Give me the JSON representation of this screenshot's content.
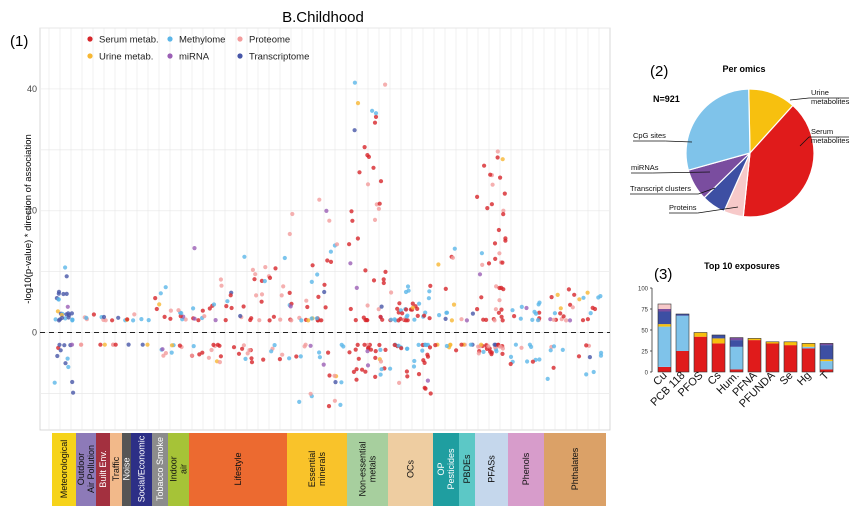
{
  "figure_title": "B.Childhood",
  "chart_data": [
    {
      "id": "manhattan",
      "type": "scatter",
      "panel_label": "(1)",
      "ylabel": "-log10(p-value) * direction of association",
      "ylim": [
        -16,
        50
      ],
      "yticks": [
        -20,
        0,
        20,
        40
      ],
      "legend_placement": "top-left",
      "legend": [
        {
          "name": "Serum metab.",
          "color": "#d7262a"
        },
        {
          "name": "Methylome",
          "color": "#5bb6e8"
        },
        {
          "name": "Proteome",
          "color": "#f39c9c"
        },
        {
          "name": "Urine metab.",
          "color": "#f7b733"
        },
        {
          "name": "miRNA",
          "color": "#9b5fb5"
        },
        {
          "name": "Transcriptome",
          "color": "#4756a8"
        }
      ],
      "groups": [
        {
          "label": "Meteorological",
          "color": "#f6d31a",
          "width": 24
        },
        {
          "label": "Outdoor Air Pollution",
          "color": "#8d7ab8",
          "width": 20
        },
        {
          "label": "Built Env.",
          "color": "#a3303f",
          "width": 14
        },
        {
          "label": "Traffic",
          "color": "#f2b98a",
          "width": 12
        },
        {
          "label": "Noise",
          "color": "#555555",
          "width": 9
        },
        {
          "label": "Social/Economic",
          "color": "#2d2f86",
          "width": 21
        },
        {
          "label": "Tobacco Smoke",
          "color": "#8c8c8c",
          "width": 16
        },
        {
          "label": "Indoor air",
          "color": "#a6c337",
          "width": 21
        },
        {
          "label": "Lifestyle",
          "color": "#ec6a30",
          "width": 98
        },
        {
          "label": "Essential minerals",
          "color": "#f9c32a",
          "width": 60
        },
        {
          "label": "Non-essential metals",
          "color": "#a7cf9e",
          "width": 41
        },
        {
          "label": "OCs",
          "color": "#eecda1",
          "width": 45
        },
        {
          "label": "OP Pesticides",
          "color": "#1f9ea0",
          "width": 26
        },
        {
          "label": "PBDEs",
          "color": "#5cc8c6",
          "width": 16
        },
        {
          "label": "PFASs",
          "color": "#c5d7ec",
          "width": 33
        },
        {
          "label": "Phenols",
          "color": "#d79ccb",
          "width": 36
        },
        {
          "label": "Phthalates",
          "color": "#dba167",
          "width": 62
        }
      ]
    },
    {
      "id": "pie",
      "type": "pie",
      "panel_label": "(2)",
      "title": "Per omics",
      "annotation": "N=921",
      "slices": [
        {
          "label": "Urine metabolites",
          "value": 12,
          "color": "#f7c00f"
        },
        {
          "label": "Serum metabolites",
          "value": 40,
          "color": "#e01b1b"
        },
        {
          "label": "Proteins",
          "value": 5,
          "color": "#f7c9c9"
        },
        {
          "label": "Transcript clusters",
          "value": 6,
          "color": "#3d4fa3"
        },
        {
          "label": "miRNAs",
          "value": 8,
          "color": "#7a4d9f"
        },
        {
          "label": "CpG sites",
          "value": 29,
          "color": "#7fc3ea"
        }
      ]
    },
    {
      "id": "bars",
      "type": "bar",
      "panel_label": "(3)",
      "title": "Top 10 exposures",
      "ylim": [
        0,
        100
      ],
      "yticks": [
        0,
        25,
        50,
        75,
        100
      ],
      "categories": [
        "Cu",
        "PCB 118",
        "PFOS",
        "Cs",
        "Hum.",
        "PFNA",
        "PFUNDA",
        "Se",
        "Hg",
        "T"
      ],
      "series": [
        {
          "color": "#e01b1b",
          "values": [
            6,
            25,
            42,
            34,
            3,
            38,
            34,
            32,
            28,
            3
          ]
        },
        {
          "color": "#7fc3ea",
          "values": [
            48,
            42,
            0,
            0,
            27,
            0,
            0,
            0,
            2,
            10
          ]
        },
        {
          "color": "#f7c00f",
          "values": [
            3,
            0,
            5,
            6,
            0,
            2,
            2,
            4,
            4,
            2
          ]
        },
        {
          "color": "#3d4fa3",
          "values": [
            15,
            2,
            0,
            4,
            8,
            0,
            0,
            0,
            0,
            17
          ]
        },
        {
          "color": "#7a4d9f",
          "values": [
            3,
            0,
            0,
            0,
            3,
            0,
            0,
            0,
            0,
            2
          ]
        },
        {
          "color": "#f7c9c9",
          "values": [
            6,
            0,
            0,
            0,
            0,
            0,
            0,
            0,
            0,
            0
          ]
        }
      ]
    }
  ]
}
